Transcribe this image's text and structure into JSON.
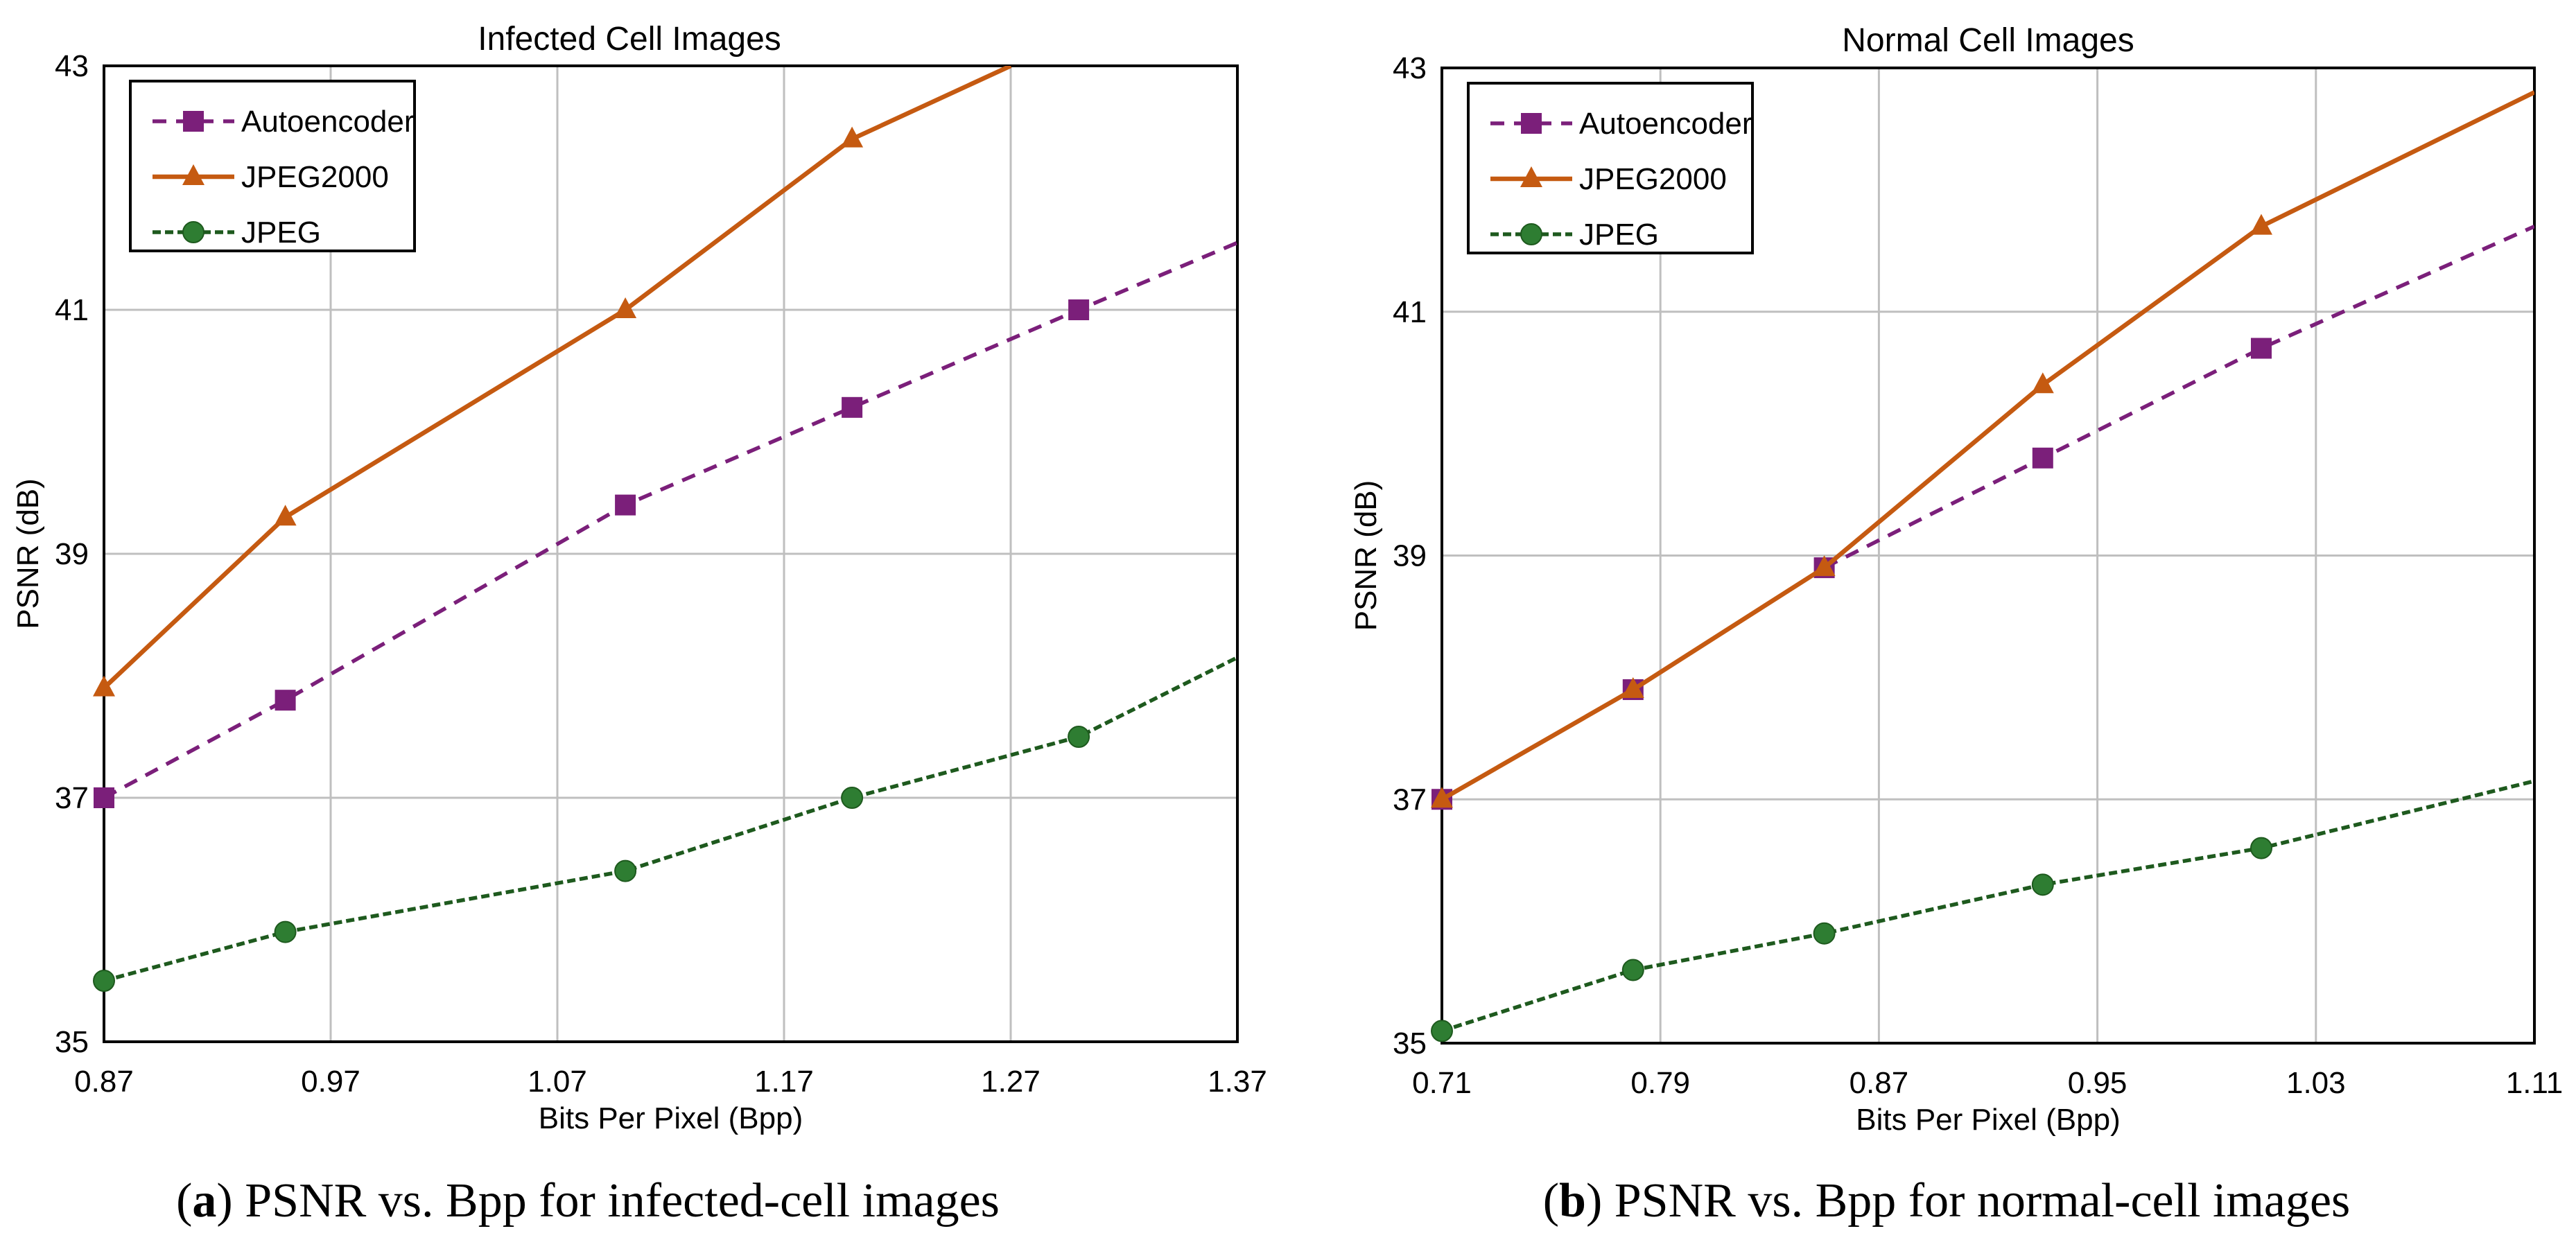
{
  "colors": {
    "autoencoder": "#7B1F7A",
    "jpeg2000": "#C55A11",
    "jpeg_line": "#1E5A1E",
    "jpeg_marker": "#2E7D32",
    "grid": "#BFBFBF",
    "axis": "#000000"
  },
  "chart_data": [
    {
      "type": "line",
      "title": "Infected Cell Images",
      "xlabel": "Bits Per Pixel (Bpp)",
      "ylabel": "PSNR (dB)",
      "xlim": [
        0.87,
        1.37
      ],
      "ylim": [
        35,
        43
      ],
      "xticks": [
        "0.87",
        "0.97",
        "1.07",
        "1.17",
        "1.27",
        "1.37"
      ],
      "yticks": [
        "35",
        "37",
        "39",
        "41",
        "43"
      ],
      "grid": true,
      "legend_position": "top-left",
      "series": [
        {
          "name": "Autoencoder",
          "style": "dashed",
          "marker": "square",
          "x": [
            0.87,
            0.95,
            1.1,
            1.2,
            1.3,
            1.37
          ],
          "y": [
            37.0,
            37.8,
            39.4,
            40.2,
            41.0,
            41.55
          ],
          "markers": [
            true,
            true,
            true,
            true,
            true,
            false
          ]
        },
        {
          "name": "JPEG2000",
          "style": "solid",
          "marker": "triangle",
          "x": [
            0.87,
            0.95,
            1.1,
            1.2,
            1.27
          ],
          "y": [
            37.9,
            39.3,
            41.0,
            42.4,
            43.0
          ],
          "markers": [
            true,
            true,
            true,
            true,
            false
          ]
        },
        {
          "name": "JPEG",
          "style": "dashed",
          "marker": "circle",
          "x": [
            0.87,
            0.95,
            1.1,
            1.2,
            1.3,
            1.37
          ],
          "y": [
            35.5,
            35.9,
            36.4,
            37.0,
            37.5,
            38.15
          ],
          "markers": [
            true,
            true,
            true,
            true,
            true,
            false
          ]
        }
      ]
    },
    {
      "type": "line",
      "title": "Normal Cell Images",
      "xlabel": "Bits Per Pixel (Bpp)",
      "ylabel": "PSNR (dB)",
      "xlim": [
        0.71,
        1.11
      ],
      "ylim": [
        35,
        43
      ],
      "xticks": [
        "0.71",
        "0.79",
        "0.87",
        "0.95",
        "1.03",
        "1.11"
      ],
      "yticks": [
        "35",
        "37",
        "39",
        "41",
        "43"
      ],
      "grid": true,
      "legend_position": "top-left",
      "series": [
        {
          "name": "Autoencoder",
          "style": "dashed",
          "marker": "square",
          "x": [
            0.71,
            0.78,
            0.85,
            0.93,
            1.01,
            1.11
          ],
          "y": [
            37.0,
            37.9,
            38.9,
            39.8,
            40.7,
            41.7
          ],
          "markers": [
            true,
            true,
            true,
            true,
            true,
            false
          ]
        },
        {
          "name": "JPEG2000",
          "style": "solid",
          "marker": "triangle",
          "x": [
            0.71,
            0.78,
            0.85,
            0.93,
            1.01,
            1.11
          ],
          "y": [
            37.0,
            37.9,
            38.9,
            40.4,
            41.7,
            42.8
          ],
          "markers": [
            true,
            true,
            true,
            true,
            true,
            false
          ]
        },
        {
          "name": "JPEG",
          "style": "dashed",
          "marker": "circle",
          "x": [
            0.71,
            0.78,
            0.85,
            0.93,
            1.01,
            1.11
          ],
          "y": [
            35.1,
            35.6,
            35.9,
            36.3,
            36.6,
            37.15
          ],
          "markers": [
            true,
            true,
            true,
            true,
            true,
            false
          ]
        }
      ]
    }
  ],
  "captions": [
    {
      "label": "a",
      "text": " PSNR vs. Bpp for infected-cell images"
    },
    {
      "label": "b",
      "text": " PSNR vs. Bpp for normal-cell images"
    }
  ]
}
